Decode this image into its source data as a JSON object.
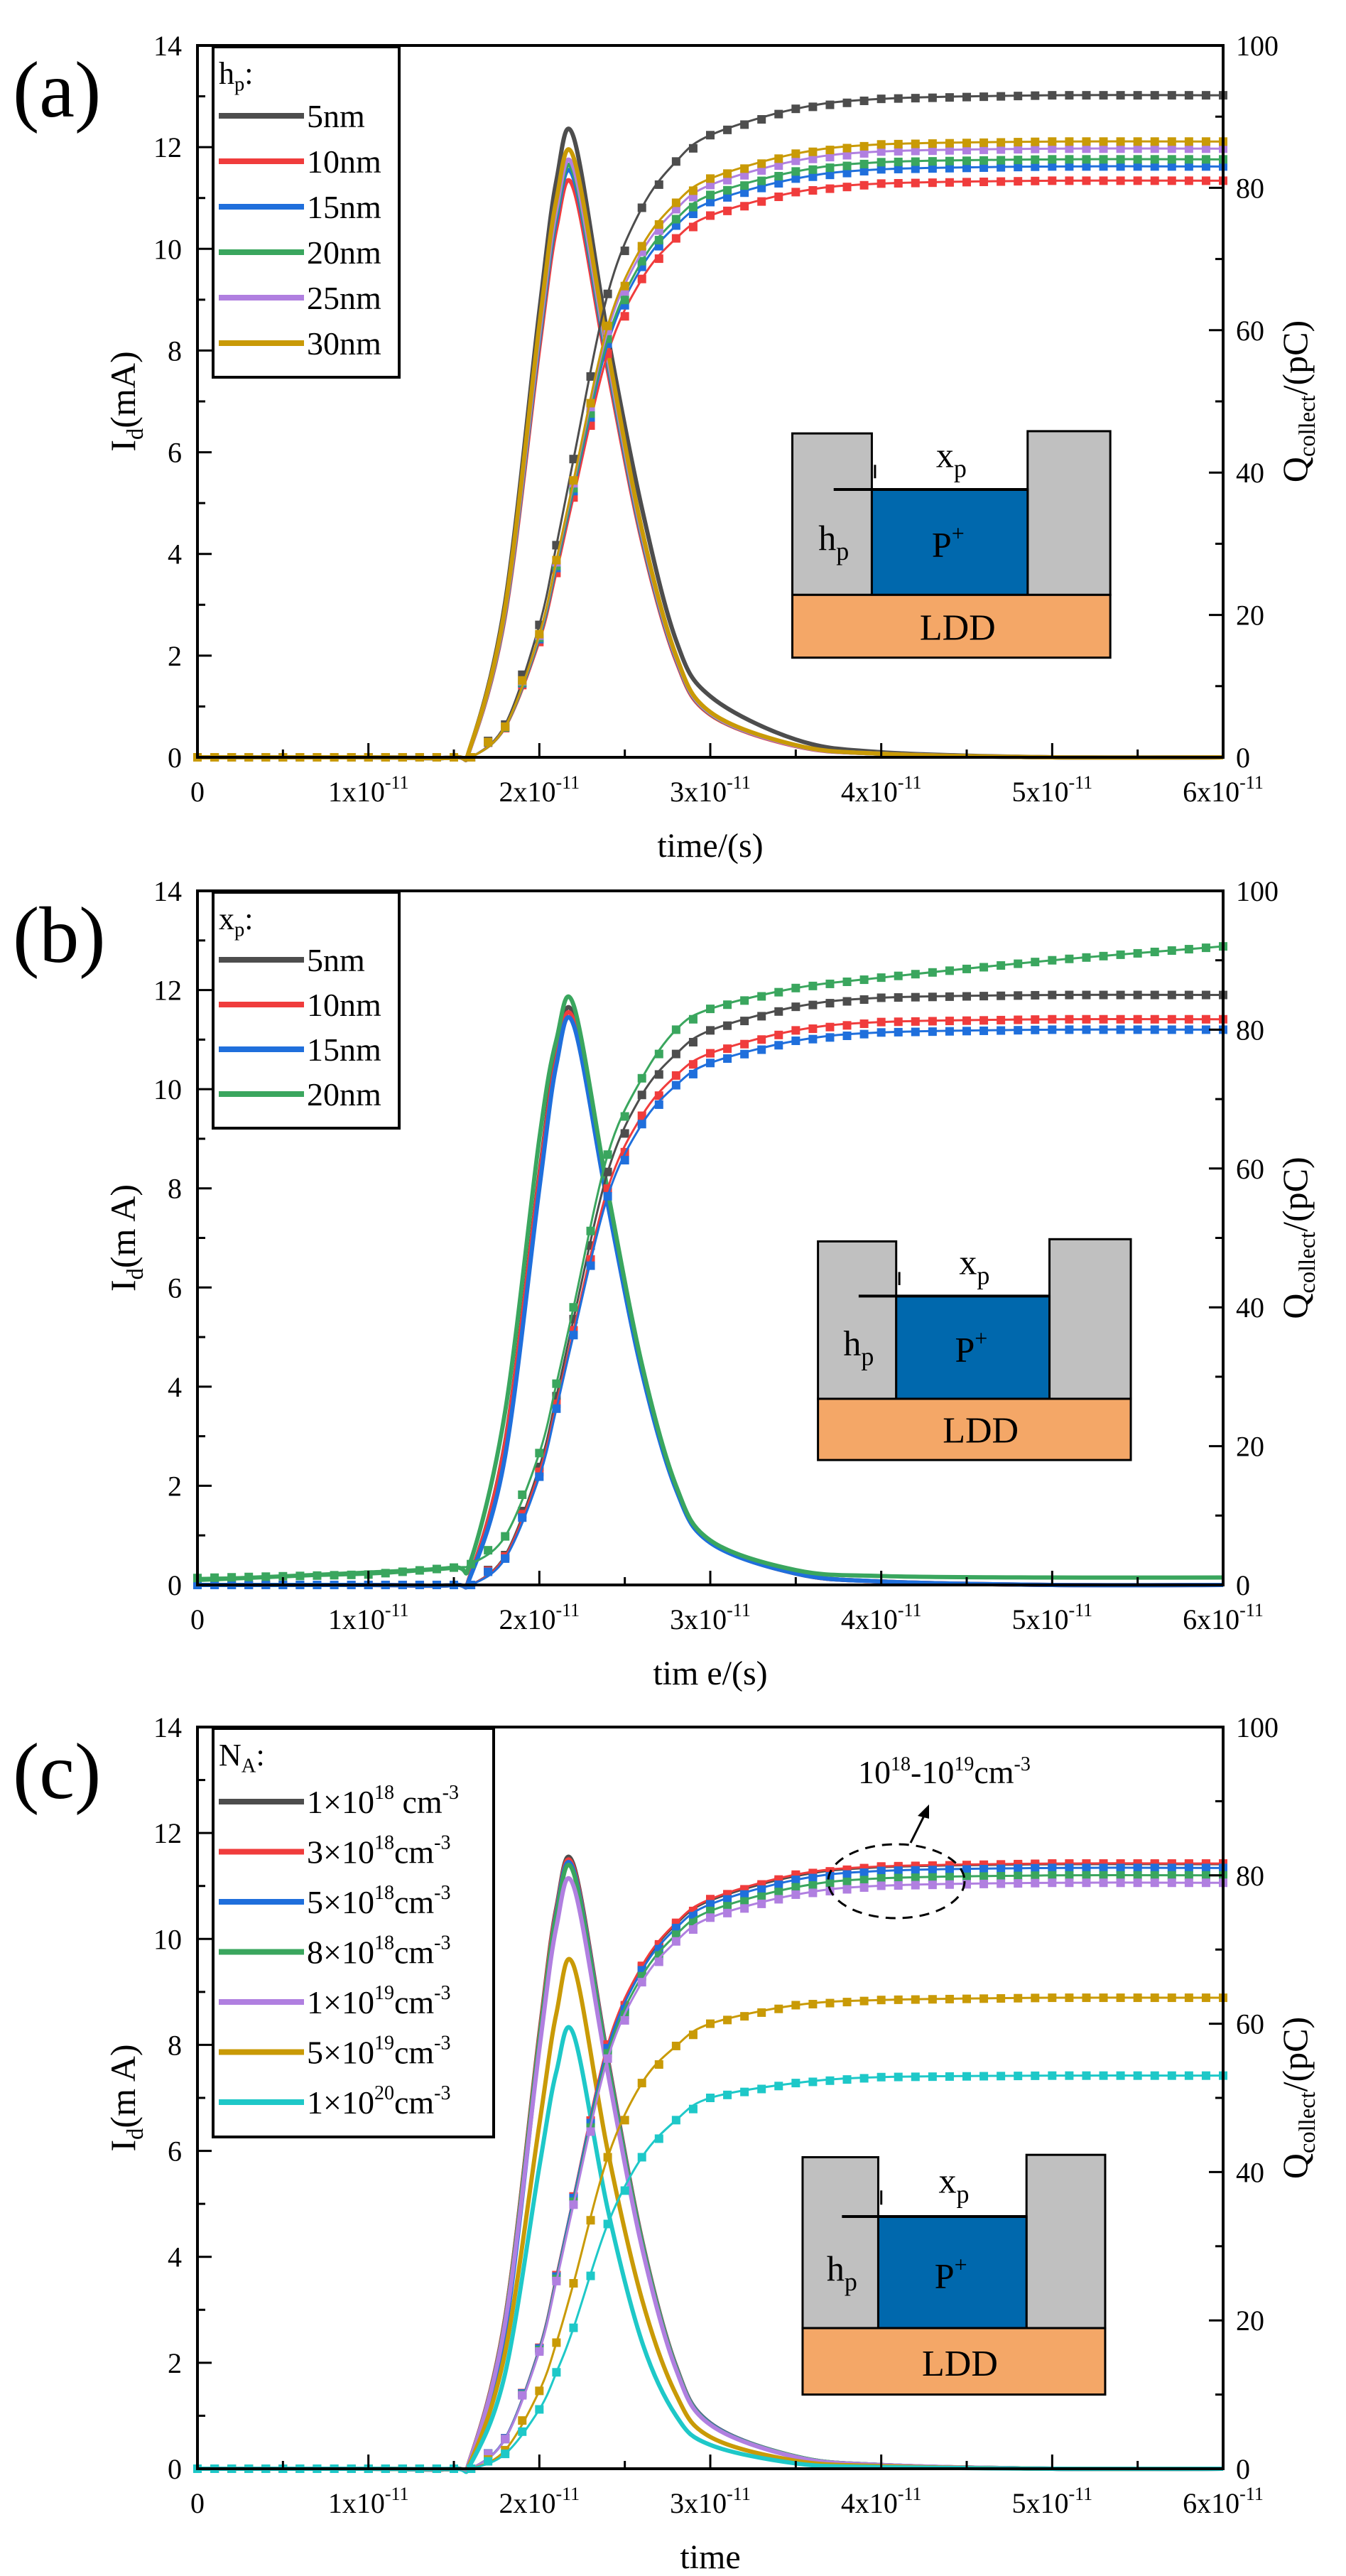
{
  "chart_data": [
    {
      "panel": "(a)",
      "type": "line",
      "xlabel": "time/(s)",
      "ylabel_left": {
        "base": "I",
        "sub": "d",
        "suffix": "(mA)"
      },
      "ylabel_right": {
        "base": "Q",
        "sub": "collect",
        "suffix": "/(pC)"
      },
      "xlim": [
        0,
        6e-11
      ],
      "ylim_left": [
        0,
        14
      ],
      "ylim_right": [
        0,
        100
      ],
      "legend_title": {
        "base": "h",
        "sub": "p",
        "suffix": ":"
      },
      "legend_position": "top-left",
      "x": [
        0,
        1e-11,
        1.5e-11,
        1.6e-11,
        1.8e-11,
        2e-11,
        2.1e-11,
        2.2e-11,
        2.4e-11,
        2.6e-11,
        2.8e-11,
        3e-11,
        3.5e-11,
        4e-11,
        5e-11,
        6e-11
      ],
      "series": [
        {
          "name": "5nm",
          "color": "#4d4d4d",
          "Id": [
            0,
            0,
            0,
            0.24,
            3.05,
            8.78,
            11.35,
            12.2,
            8.3,
            4.9,
            2.3,
            1.2,
            0.35,
            0.1,
            0,
            0
          ],
          "Q": [
            0,
            0,
            0,
            0,
            4.6,
            18.6,
            29.8,
            41.9,
            65.1,
            77.2,
            83.7,
            87.4,
            91.1,
            92.5,
            93,
            93
          ]
        },
        {
          "name": "10nm",
          "color": "#f03c3c",
          "Id": [
            0,
            0,
            0,
            0.22,
            2.8,
            8.06,
            10.42,
            11.2,
            7.62,
            4.26,
            1.9,
            0.84,
            0.22,
            0.07,
            0,
            0
          ],
          "Q": [
            0,
            0,
            0,
            0,
            4.1,
            16.2,
            25.9,
            36.5,
            56.7,
            67.2,
            72.9,
            76.1,
            79.4,
            80.6,
            81,
            81
          ]
        },
        {
          "name": "15nm",
          "color": "#1f6fdc",
          "Id": [
            0,
            0,
            0,
            0.23,
            2.85,
            8.21,
            10.6,
            11.4,
            7.75,
            4.33,
            1.94,
            0.86,
            0.23,
            0.07,
            0,
            0
          ],
          "Q": [
            0,
            0,
            0,
            0,
            4.2,
            16.6,
            26.6,
            37.4,
            58.1,
            68.9,
            74.7,
            78,
            81.3,
            82.6,
            83,
            83
          ]
        },
        {
          "name": "20nm",
          "color": "#3aa65e",
          "Id": [
            0,
            0,
            0,
            0.23,
            2.88,
            8.28,
            10.7,
            11.5,
            7.82,
            4.37,
            1.96,
            0.86,
            0.23,
            0.07,
            0,
            0
          ],
          "Q": [
            0,
            0,
            0,
            0,
            4.2,
            16.8,
            26.9,
            37.8,
            58.8,
            69.7,
            75.6,
            79,
            82.3,
            83.6,
            84,
            84
          ]
        },
        {
          "name": "25nm",
          "color": "#b07fe0",
          "Id": [
            0,
            0,
            0,
            0.23,
            2.9,
            8.35,
            10.79,
            11.6,
            7.89,
            4.41,
            1.97,
            0.87,
            0.23,
            0.07,
            0,
            0
          ],
          "Q": [
            0,
            0,
            0,
            0,
            4.3,
            17.1,
            27.4,
            38.5,
            59.9,
            71,
            77,
            80.4,
            83.8,
            85.1,
            85.5,
            85.5
          ]
        },
        {
          "name": "30nm",
          "color": "#c99a06",
          "Id": [
            0,
            0,
            0,
            0.24,
            2.95,
            8.5,
            10.97,
            11.8,
            8.02,
            4.48,
            2.0,
            0.89,
            0.24,
            0.07,
            0,
            0
          ],
          "Q": [
            0,
            0,
            0,
            0,
            4.3,
            17.3,
            27.7,
            38.9,
            60.6,
            71.8,
            77.9,
            81.3,
            84.8,
            86.1,
            86.5,
            86.5
          ]
        }
      ]
    },
    {
      "panel": "(b)",
      "type": "line",
      "xlabel": "tim e/(s)",
      "ylabel_left": {
        "base": "I",
        "sub": "d",
        "suffix": "(m A)"
      },
      "ylabel_right": {
        "base": "Q",
        "sub": "collect",
        "suffix": "/(pC)"
      },
      "xlim": [
        0,
        6e-11
      ],
      "ylim_left": [
        0,
        14
      ],
      "ylim_right": [
        0,
        100
      ],
      "legend_title": {
        "base": "x",
        "sub": "p",
        "suffix": ":"
      },
      "legend_position": "top-left",
      "x": [
        0,
        1e-11,
        1.5e-11,
        1.6e-11,
        1.8e-11,
        2e-11,
        2.1e-11,
        2.2e-11,
        2.4e-11,
        2.6e-11,
        2.8e-11,
        3e-11,
        3.5e-11,
        4e-11,
        5e-11,
        6e-11
      ],
      "series": [
        {
          "name": "5nm",
          "color": "#4d4d4d",
          "Id": [
            0,
            0,
            0,
            0.23,
            2.88,
            8.28,
            10.7,
            11.5,
            7.82,
            4.37,
            1.96,
            0.86,
            0.23,
            0.07,
            0,
            0
          ],
          "Q": [
            0,
            0,
            0,
            0,
            4.3,
            17,
            27.2,
            38.3,
            59.5,
            70.6,
            76.5,
            79.9,
            83.3,
            84.6,
            85,
            85
          ]
        },
        {
          "name": "10nm",
          "color": "#f03c3c",
          "Id": [
            0,
            0,
            0,
            0.23,
            2.85,
            8.21,
            10.6,
            11.4,
            7.75,
            4.33,
            1.94,
            0.86,
            0.23,
            0.07,
            0,
            0
          ],
          "Q": [
            0,
            0,
            0,
            0,
            4.1,
            16.3,
            26.1,
            36.7,
            57.1,
            67.6,
            73.4,
            76.6,
            79.9,
            81.1,
            81.5,
            81.5
          ]
        },
        {
          "name": "15nm",
          "color": "#1f6fdc",
          "Id": [
            0,
            0,
            0,
            0.2,
            2.6,
            8.0,
            10.5,
            11.3,
            7.68,
            4.29,
            1.92,
            0.85,
            0.23,
            0.07,
            0,
            0
          ],
          "Q": [
            0,
            0,
            0,
            0,
            3.8,
            15.6,
            25.4,
            36,
            56,
            66.4,
            72,
            75.2,
            78.4,
            79.6,
            80,
            80
          ]
        },
        {
          "name": "20nm",
          "color": "#3aa65e",
          "Id": [
            0.1,
            0.25,
            0.35,
            0.5,
            3.5,
            9.0,
            11.0,
            11.7,
            7.95,
            4.45,
            2.0,
            0.9,
            0.3,
            0.18,
            0.15,
            0.15
          ],
          "Q": [
            1,
            1.5,
            2.5,
            3,
            7,
            19,
            29,
            40,
            62,
            73,
            80,
            83,
            86,
            87.5,
            90,
            92
          ]
        }
      ]
    },
    {
      "panel": "(c)",
      "type": "line",
      "xlabel": "time",
      "ylabel_left": {
        "base": "I",
        "sub": "d",
        "suffix": "(m A)"
      },
      "ylabel_right": {
        "base": "Q",
        "sub": "collect",
        "suffix": "/(pC)"
      },
      "xlim": [
        0,
        6e-11
      ],
      "ylim_left": [
        0,
        14
      ],
      "ylim_right": [
        0,
        100
      ],
      "legend_title": {
        "base": "N",
        "sub": "A",
        "suffix": ":"
      },
      "legend_position": "top-left",
      "annotation": {
        "parts": [
          [
            "10",
            "18"
          ],
          [
            "-10",
            "19"
          ],
          [
            "cm",
            "-3"
          ]
        ]
      },
      "x": [
        0,
        1e-11,
        1.5e-11,
        1.6e-11,
        1.8e-11,
        2e-11,
        2.1e-11,
        2.2e-11,
        2.4e-11,
        2.6e-11,
        2.8e-11,
        3e-11,
        3.5e-11,
        4e-11,
        5e-11,
        6e-11
      ],
      "series": [
        {
          "name": "1×10^18 cm^-3",
          "label": {
            "base": "1×10",
            "exp": "18",
            "unit": " cm",
            "uexp": "-3"
          },
          "color": "#4d4d4d",
          "Id": [
            0,
            0,
            0,
            0.23,
            2.85,
            8.21,
            10.6,
            11.4,
            7.75,
            4.33,
            1.94,
            0.86,
            0.23,
            0.07,
            0,
            0
          ],
          "Q": [
            0,
            0,
            0,
            0,
            4.1,
            16.3,
            26.1,
            36.7,
            57.1,
            67.6,
            73.4,
            76.6,
            79.9,
            81.1,
            81.5,
            81.5
          ]
        },
        {
          "name": "3×10^18cm^-3",
          "label": {
            "base": "3×10",
            "exp": "18",
            "unit": "cm",
            "uexp": "-3"
          },
          "color": "#f03c3c",
          "Id": [
            0,
            0,
            0,
            0.23,
            2.84,
            8.17,
            10.56,
            11.35,
            7.72,
            4.31,
            1.93,
            0.85,
            0.23,
            0.07,
            0,
            0
          ],
          "Q": [
            0,
            0,
            0,
            0,
            4.1,
            16.3,
            26.1,
            36.7,
            57.2,
            67.8,
            73.6,
            76.8,
            80.1,
            81.2,
            81.6,
            81.6
          ]
        },
        {
          "name": "5×10^18cm^-3",
          "label": {
            "base": "5×10",
            "exp": "18",
            "unit": "cm",
            "uexp": "-3"
          },
          "color": "#1f6fdc",
          "Id": [
            0,
            0,
            0,
            0.2,
            2.6,
            8.0,
            10.5,
            11.3,
            7.68,
            4.29,
            1.92,
            0.85,
            0.23,
            0.07,
            0,
            0
          ],
          "Q": [
            0,
            0,
            0,
            0,
            4.1,
            16.2,
            25.9,
            36.5,
            56.7,
            67.2,
            72.9,
            76.1,
            79.4,
            80.6,
            81,
            81
          ]
        },
        {
          "name": "8×10^18cm^-3",
          "label": {
            "base": "8×10",
            "exp": "18",
            "unit": "cm",
            "uexp": "-3"
          },
          "color": "#3aa65e",
          "Id": [
            0,
            0,
            0,
            0.22,
            2.8,
            8.1,
            10.46,
            11.25,
            7.65,
            4.28,
            1.91,
            0.84,
            0.23,
            0.07,
            0,
            0
          ],
          "Q": [
            0,
            0,
            0,
            0,
            4,
            16,
            25.6,
            36,
            56,
            66.4,
            72,
            75.2,
            78.4,
            79.6,
            80,
            80
          ]
        },
        {
          "name": "1×10^19cm^-3",
          "label": {
            "base": "1×10",
            "exp": "19",
            "unit": "cm",
            "uexp": "-3"
          },
          "color": "#b07fe0",
          "Id": [
            0,
            0,
            0,
            0.22,
            2.75,
            7.92,
            10.23,
            11,
            7.48,
            4.18,
            1.87,
            0.83,
            0.22,
            0.07,
            0,
            0
          ],
          "Q": [
            0,
            0,
            0,
            0,
            4,
            15.8,
            25.3,
            35.6,
            55.3,
            65.6,
            71.1,
            74.3,
            77.4,
            78.6,
            79,
            79
          ]
        },
        {
          "name": "5×10^19cm^-3",
          "label": {
            "base": "5×10",
            "exp": "19",
            "unit": "cm",
            "uexp": "-3"
          },
          "color": "#c99a06",
          "Id": [
            0,
            0,
            0,
            0.15,
            2.2,
            6.5,
            8.6,
            9.5,
            6.0,
            3.2,
            1.4,
            0.6,
            0.15,
            0.05,
            0,
            0
          ],
          "Q": [
            0,
            0,
            0,
            0,
            2.5,
            10.5,
            17,
            25,
            42,
            52,
            57,
            60,
            62.5,
            63.2,
            63.5,
            63.5
          ]
        },
        {
          "name": "1×10^20cm^-3",
          "label": {
            "base": "1×10",
            "exp": "20",
            "unit": "cm",
            "uexp": "-3"
          },
          "color": "#1ec8c8",
          "Id": [
            0,
            0,
            0,
            0.1,
            1.8,
            5.7,
            7.5,
            8.2,
            4.9,
            2.4,
            1.0,
            0.45,
            0.1,
            0.03,
            0,
            0
          ],
          "Q": [
            0,
            0,
            0,
            0,
            2,
            8,
            13,
            19,
            33,
            42,
            47,
            50,
            52,
            52.8,
            53,
            53
          ]
        }
      ]
    }
  ],
  "x_ticks": [
    {
      "value": 0,
      "base": "0",
      "exp": ""
    },
    {
      "value": 1e-11,
      "base": "1x10",
      "exp": "-11"
    },
    {
      "value": 2e-11,
      "base": "2x10",
      "exp": "-11"
    },
    {
      "value": 3e-11,
      "base": "3x10",
      "exp": "-11"
    },
    {
      "value": 4e-11,
      "base": "4x10",
      "exp": "-11"
    },
    {
      "value": 5e-11,
      "base": "5x10",
      "exp": "-11"
    },
    {
      "value": 6e-11,
      "base": "6x10",
      "exp": "-11"
    }
  ],
  "y_left_ticks": [
    "0",
    "2",
    "4",
    "6",
    "8",
    "10",
    "12",
    "14"
  ],
  "y_right_ticks": [
    "0",
    "20",
    "40",
    "60",
    "80",
    "100"
  ],
  "inset": {
    "xp": {
      "base": "x",
      "sub": "p"
    },
    "hp": {
      "base": "h",
      "sub": "p"
    },
    "pplus": {
      "base": "P",
      "sup": "+"
    },
    "ldd": "LDD",
    "colors": {
      "oxide": "#c0c0c0",
      "p_plus": "#0068ad",
      "ldd": "#f4a767"
    }
  }
}
